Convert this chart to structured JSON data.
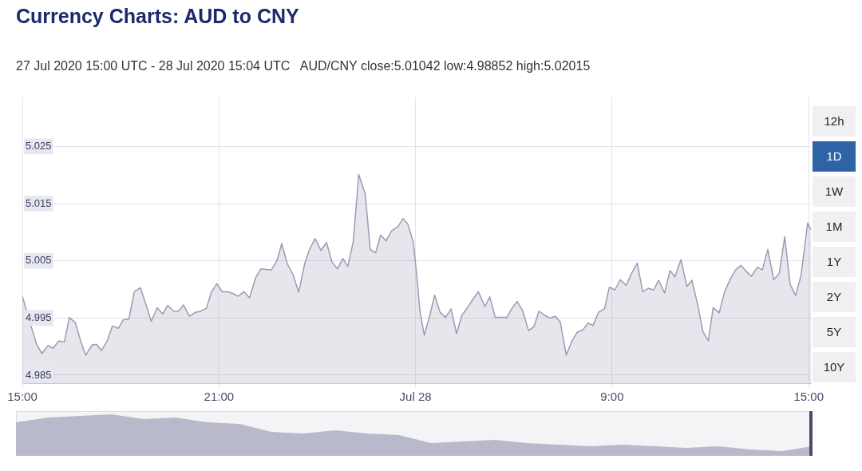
{
  "chart_data": {
    "type": "area",
    "title": "Currency Charts: AUD to CNY",
    "subtitle": "27 Jul 2020 15:00 UTC - 28 Jul 2020 15:04 UTC   AUD/CNY close:5.01042 low:4.98852 high:5.02015",
    "annotations": [
      "12h",
      "1D",
      "1W",
      "1M",
      "1Y",
      "2Y",
      "5Y",
      "10Y"
    ],
    "xlim": [
      "2020-07-27T15:00",
      "2020-07-28T15:04"
    ],
    "xticks": [
      {
        "value": "2020-07-27T15:00",
        "label": "15:00"
      },
      {
        "value": "2020-07-27T21:00",
        "label": "21:00"
      },
      {
        "value": "2020-07-28T03:00",
        "label": "Jul 28"
      },
      {
        "value": "2020-07-28T09:00",
        "label": "9:00"
      },
      {
        "value": "2020-07-28T15:00",
        "label": "15:00"
      }
    ],
    "ylim": [
      4.9836,
      5.0336
    ],
    "yticks": [
      4.985,
      4.995,
      5.005,
      5.015,
      5.025
    ],
    "grid": true,
    "legend": false,
    "marker": "none",
    "series": [
      {
        "color": "#9a9cb4",
        "x": [
          "2020-07-27T15:00",
          "2020-07-27T15:16",
          "2020-07-27T15:26",
          "2020-07-27T15:36",
          "2020-07-27T15:47",
          "2020-07-27T15:56",
          "2020-07-27T16:07",
          "2020-07-27T16:17",
          "2020-07-27T16:26",
          "2020-07-27T16:37",
          "2020-07-27T16:47",
          "2020-07-27T16:56",
          "2020-07-27T17:08",
          "2020-07-27T17:16",
          "2020-07-27T17:25",
          "2020-07-27T17:35",
          "2020-07-27T17:45",
          "2020-07-27T17:56",
          "2020-07-27T18:05",
          "2020-07-27T18:15",
          "2020-07-27T18:25",
          "2020-07-27T18:36",
          "2020-07-27T18:47",
          "2020-07-27T18:56",
          "2020-07-27T19:07",
          "2020-07-27T19:17",
          "2020-07-27T19:26",
          "2020-07-27T19:37",
          "2020-07-27T19:46",
          "2020-07-27T19:55",
          "2020-07-27T20:06",
          "2020-07-27T20:17",
          "2020-07-27T20:27",
          "2020-07-27T20:37",
          "2020-07-27T20:46",
          "2020-07-27T20:56",
          "2020-07-27T21:06",
          "2020-07-27T21:16",
          "2020-07-27T21:25",
          "2020-07-27T21:35",
          "2020-07-27T21:46",
          "2020-07-27T21:56",
          "2020-07-27T22:07",
          "2020-07-27T22:17",
          "2020-07-27T22:26",
          "2020-07-27T22:36",
          "2020-07-27T22:46",
          "2020-07-27T22:55",
          "2020-07-27T23:05",
          "2020-07-27T23:16",
          "2020-07-27T23:26",
          "2020-07-27T23:37",
          "2020-07-27T23:46",
          "2020-07-27T23:56",
          "2020-07-28T00:07",
          "2020-07-28T00:17",
          "2020-07-28T00:27",
          "2020-07-28T00:37",
          "2020-07-28T00:47",
          "2020-07-28T00:56",
          "2020-07-28T01:06",
          "2020-07-28T01:16",
          "2020-07-28T01:28",
          "2020-07-28T01:37",
          "2020-07-28T01:47",
          "2020-07-28T01:56",
          "2020-07-28T02:06",
          "2020-07-28T02:16",
          "2020-07-28T02:28",
          "2020-07-28T02:37",
          "2020-07-28T02:46",
          "2020-07-28T02:56",
          "2020-07-28T03:02",
          "2020-07-28T03:08",
          "2020-07-28T03:16",
          "2020-07-28T03:26",
          "2020-07-28T03:35",
          "2020-07-28T03:45",
          "2020-07-28T03:55",
          "2020-07-28T04:05",
          "2020-07-28T04:15",
          "2020-07-28T04:25",
          "2020-07-28T04:35",
          "2020-07-28T04:46",
          "2020-07-28T04:55",
          "2020-07-28T05:07",
          "2020-07-28T05:16",
          "2020-07-28T05:26",
          "2020-07-28T05:37",
          "2020-07-28T05:47",
          "2020-07-28T05:56",
          "2020-07-28T06:06",
          "2020-07-28T06:16",
          "2020-07-28T06:27",
          "2020-07-28T06:37",
          "2020-07-28T06:46",
          "2020-07-28T06:56",
          "2020-07-28T07:06",
          "2020-07-28T07:16",
          "2020-07-28T07:25",
          "2020-07-28T07:36",
          "2020-07-28T07:46",
          "2020-07-28T07:56",
          "2020-07-28T08:06",
          "2020-07-28T08:16",
          "2020-07-28T08:25",
          "2020-07-28T08:35",
          "2020-07-28T08:46",
          "2020-07-28T08:55",
          "2020-07-28T09:05",
          "2020-07-28T09:15",
          "2020-07-28T09:26",
          "2020-07-28T09:35",
          "2020-07-28T09:46",
          "2020-07-28T09:56",
          "2020-07-28T10:06",
          "2020-07-28T10:16",
          "2020-07-28T10:25",
          "2020-07-28T10:36",
          "2020-07-28T10:46",
          "2020-07-28T10:55",
          "2020-07-28T11:06",
          "2020-07-28T11:17",
          "2020-07-28T11:26",
          "2020-07-28T11:37",
          "2020-07-28T11:46",
          "2020-07-28T11:56",
          "2020-07-28T12:05",
          "2020-07-28T12:16",
          "2020-07-28T12:26",
          "2020-07-28T12:37",
          "2020-07-28T12:46",
          "2020-07-28T12:56",
          "2020-07-28T13:05",
          "2020-07-28T13:15",
          "2020-07-28T13:26",
          "2020-07-28T13:35",
          "2020-07-28T13:45",
          "2020-07-28T13:56",
          "2020-07-28T14:06",
          "2020-07-28T14:16",
          "2020-07-28T14:26",
          "2020-07-28T14:36",
          "2020-07-28T14:46",
          "2020-07-28T14:58",
          "2020-07-28T15:04"
        ],
        "values": [
          4.9988,
          4.9936,
          4.9904,
          4.9888,
          4.9902,
          4.9897,
          4.991,
          4.9908,
          4.9951,
          4.9942,
          4.9909,
          4.9885,
          4.9903,
          4.9904,
          4.9893,
          4.9909,
          4.9936,
          4.9932,
          4.9947,
          4.9948,
          4.9996,
          5.0003,
          4.9972,
          4.9944,
          4.9968,
          4.9957,
          4.9972,
          4.9962,
          4.9962,
          4.9973,
          4.9953,
          4.996,
          4.9962,
          4.9967,
          4.9995,
          5.001,
          4.9996,
          4.9996,
          4.9993,
          4.9988,
          4.9996,
          4.9985,
          5.002,
          5.0036,
          5.0035,
          5.0034,
          5.005,
          5.008,
          5.0045,
          5.0025,
          4.9995,
          5.0045,
          5.007,
          5.0089,
          5.0068,
          5.0082,
          5.0048,
          5.0036,
          5.0054,
          5.004,
          5.0084,
          5.0201,
          5.0166,
          5.007,
          5.0064,
          5.0095,
          5.0085,
          5.0102,
          5.011,
          5.0124,
          5.0114,
          5.0082,
          5.0027,
          4.9963,
          4.992,
          4.9954,
          4.999,
          4.996,
          4.9951,
          4.9966,
          4.9923,
          4.9955,
          4.9968,
          4.9984,
          4.9996,
          4.997,
          4.9987,
          4.9951,
          4.9951,
          4.9951,
          4.9966,
          4.9979,
          4.9963,
          4.9928,
          4.9935,
          4.9962,
          4.9955,
          4.995,
          4.9953,
          4.9943,
          4.9885,
          4.9909,
          4.9925,
          4.9929,
          4.9941,
          4.9937,
          4.996,
          4.9966,
          5.0004,
          4.9999,
          5.0017,
          5.0007,
          5.0027,
          5.0046,
          4.9996,
          5.0002,
          4.9999,
          5.0016,
          4.9994,
          5.0033,
          5.0022,
          5.0052,
          5.0005,
          5.0016,
          4.9972,
          4.9927,
          4.991,
          4.9968,
          4.9959,
          4.9996,
          5.0019,
          5.0034,
          5.0042,
          5.0032,
          5.0023,
          5.0039,
          5.0034,
          5.007,
          5.0017,
          5.0028,
          5.0092,
          5.0009,
          4.9989,
          5.0025,
          5.0116,
          5.0104
        ]
      }
    ]
  }
}
